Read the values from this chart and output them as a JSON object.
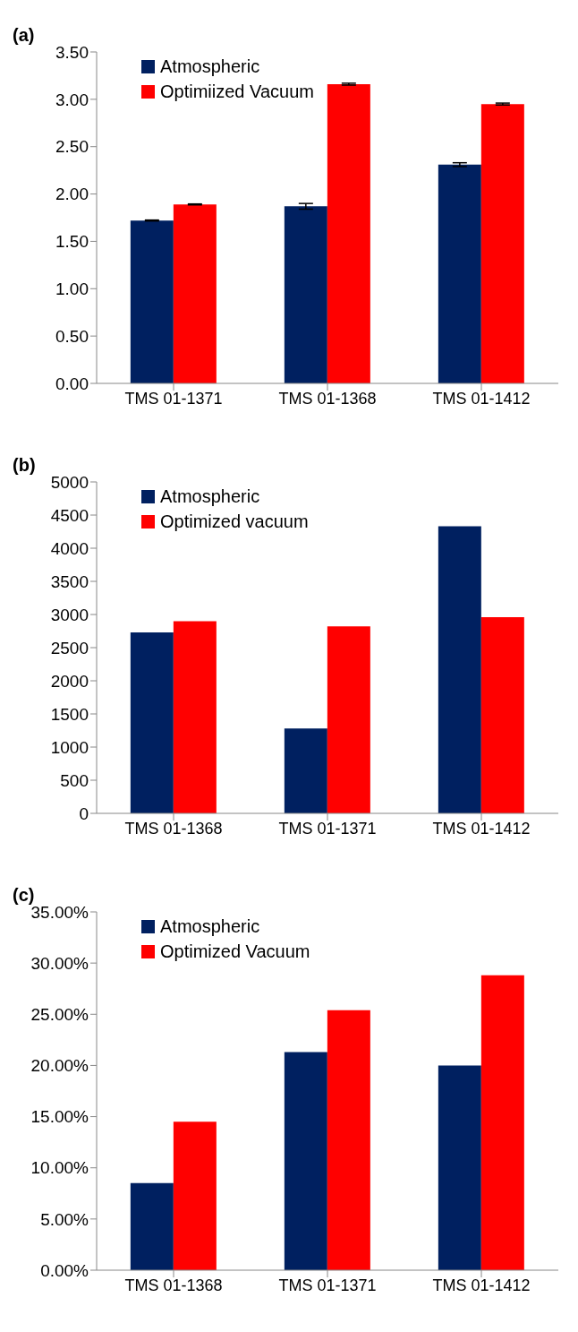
{
  "chart_data": [
    {
      "type": "bar",
      "title": "(a)",
      "categories": [
        "TMS 01-1371",
        "TMS 01-1368",
        "TMS 01-1412"
      ],
      "series": [
        {
          "name": "Atmospheric",
          "color": "#002060",
          "values": [
            1.72,
            1.87,
            2.31
          ],
          "errors": [
            0.005,
            0.03,
            0.02
          ]
        },
        {
          "name": "Optimiized Vacuum",
          "color": "#ff0000",
          "values": [
            1.89,
            3.16,
            2.95
          ],
          "errors": [
            0.005,
            0.01,
            0.01
          ]
        }
      ],
      "ylim": [
        0,
        3.5
      ],
      "yticks": [
        {
          "value": 0,
          "label": "0.00"
        },
        {
          "value": 0.5,
          "label": "0.50"
        },
        {
          "value": 1,
          "label": "1.00"
        },
        {
          "value": 1.5,
          "label": "1.50"
        },
        {
          "value": 2,
          "label": "2.00"
        },
        {
          "value": 2.5,
          "label": "2.50"
        },
        {
          "value": 3,
          "label": "3.00"
        },
        {
          "value": 3.5,
          "label": "3.50"
        }
      ],
      "grid": false,
      "legend": "top left"
    },
    {
      "type": "bar",
      "title": "(b)",
      "categories": [
        "TMS 01-1368",
        "TMS 01-1371",
        "TMS 01-1412"
      ],
      "series": [
        {
          "name": "Atmospheric",
          "color": "#002060",
          "values": [
            2730,
            1280,
            4330
          ]
        },
        {
          "name": "Optimized vacuum",
          "color": "#ff0000",
          "values": [
            2900,
            2820,
            2960
          ]
        }
      ],
      "ylim": [
        0,
        5000
      ],
      "yticks": [
        0,
        500,
        1000,
        1500,
        2000,
        2500,
        3000,
        3500,
        4000,
        4500,
        5000
      ],
      "grid": false,
      "legend": "top left"
    },
    {
      "type": "bar",
      "title": "(c)",
      "categories": [
        "TMS 01-1368",
        "TMS 01-1371",
        "TMS 01-1412"
      ],
      "series": [
        {
          "name": "Atmospheric",
          "color": "#002060",
          "values": [
            8.5,
            21.3,
            20.0
          ]
        },
        {
          "name": "Optimized Vacuum",
          "color": "#ff0000",
          "values": [
            14.5,
            25.4,
            28.8
          ]
        }
      ],
      "ylim": [
        0,
        35
      ],
      "yticks": [
        {
          "value": 0,
          "label": "0.00%"
        },
        {
          "value": 5,
          "label": "5.00%"
        },
        {
          "value": 10,
          "label": "10.00%"
        },
        {
          "value": 15,
          "label": "15.00%"
        },
        {
          "value": 20,
          "label": "20.00%"
        },
        {
          "value": 25,
          "label": "25.00%"
        },
        {
          "value": 30,
          "label": "30.00%"
        },
        {
          "value": 35,
          "label": "35.00%"
        }
      ],
      "grid": false,
      "legend": "top left"
    }
  ]
}
